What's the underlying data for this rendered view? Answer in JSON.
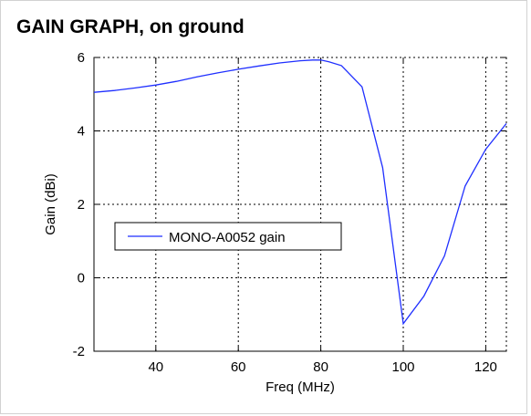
{
  "chart_data": {
    "type": "line",
    "title": "GAIN GRAPH, on ground",
    "xlabel": "Freq (MHz)",
    "ylabel": "Gain (dBi)",
    "xlim": [
      25,
      125
    ],
    "ylim": [
      -2,
      6
    ],
    "xticks": [
      40,
      60,
      80,
      100,
      120
    ],
    "yticks": [
      -2,
      0,
      2,
      4,
      6
    ],
    "grid": true,
    "grid_style": "dotted",
    "legend_position": "center-left",
    "series": [
      {
        "name": "MONO-A0052 gain",
        "color": "#1f2fff",
        "x": [
          25,
          30,
          35,
          40,
          45,
          50,
          55,
          60,
          65,
          70,
          75,
          78,
          80,
          82,
          85,
          90,
          95,
          100,
          105,
          110,
          115,
          120,
          125
        ],
        "y": [
          5.05,
          5.1,
          5.17,
          5.25,
          5.35,
          5.47,
          5.58,
          5.68,
          5.77,
          5.85,
          5.91,
          5.93,
          5.93,
          5.88,
          5.78,
          5.2,
          3.0,
          -1.25,
          -0.5,
          0.6,
          2.5,
          3.5,
          4.2
        ]
      }
    ]
  }
}
